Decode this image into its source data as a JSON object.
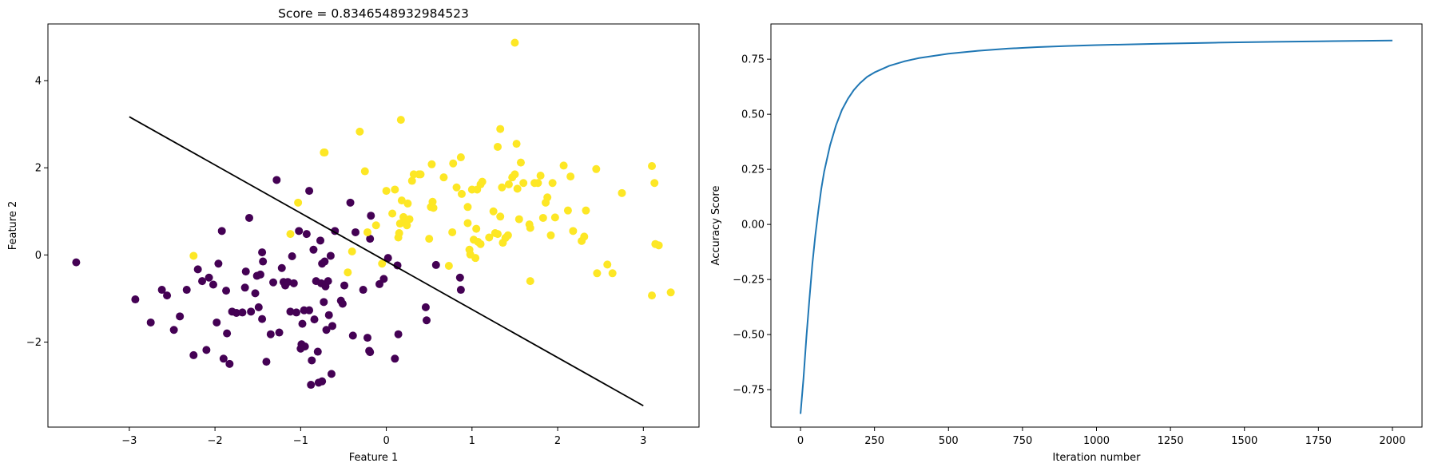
{
  "chart_data": [
    {
      "type": "scatter",
      "title": "Score = 0.8346548932984523",
      "xlabel": "Feature 1",
      "ylabel": "Feature 2",
      "xlim": [
        -3.95,
        3.65
      ],
      "ylim": [
        -3.95,
        5.3
      ],
      "xticks": [
        -3,
        -2,
        -1,
        0,
        1,
        2,
        3
      ],
      "yticks": [
        -2,
        0,
        2,
        4
      ],
      "xtick_labels": [
        "−3",
        "−2",
        "−1",
        "0",
        "1",
        "2",
        "3"
      ],
      "ytick_labels": [
        "−2",
        "0",
        "2",
        "4"
      ],
      "grid": false,
      "colors": {
        "class_0": "#440154",
        "class_1": "#fde725",
        "line": "#000000"
      },
      "decision_boundary": {
        "x": [
          -3,
          3
        ],
        "y": [
          3.17,
          -3.46
        ]
      },
      "series": [
        {
          "class": 0,
          "points": [
            [
              -3.62,
              -0.17
            ],
            [
              -2.93,
              -1.02
            ],
            [
              -2.75,
              -1.55
            ],
            [
              -2.62,
              -0.8
            ],
            [
              -2.56,
              -0.93
            ],
            [
              -2.48,
              -1.72
            ],
            [
              -2.41,
              -1.41
            ],
            [
              -2.33,
              -0.8
            ],
            [
              -2.25,
              -2.3
            ],
            [
              -2.2,
              -0.33
            ],
            [
              -2.15,
              -0.6
            ],
            [
              -2.1,
              -2.18
            ],
            [
              -2.07,
              -0.52
            ],
            [
              -2.02,
              -0.68
            ],
            [
              -1.98,
              -1.55
            ],
            [
              -1.96,
              -0.2
            ],
            [
              -1.92,
              0.55
            ],
            [
              -1.9,
              -2.38
            ],
            [
              -1.87,
              -0.82
            ],
            [
              -1.86,
              -1.8
            ],
            [
              -1.83,
              -2.5
            ],
            [
              -1.8,
              -1.3
            ],
            [
              -1.75,
              -1.33
            ],
            [
              -1.68,
              -1.32
            ],
            [
              -1.65,
              -0.75
            ],
            [
              -1.64,
              -0.38
            ],
            [
              -1.58,
              -1.3
            ],
            [
              -1.6,
              0.85
            ],
            [
              -1.53,
              -0.88
            ],
            [
              -1.51,
              -0.48
            ],
            [
              -1.49,
              -1.2
            ],
            [
              -1.47,
              -0.45
            ],
            [
              -1.45,
              -1.47
            ],
            [
              -1.45,
              0.06
            ],
            [
              -1.44,
              -0.15
            ],
            [
              -1.4,
              -2.45
            ],
            [
              -1.35,
              -1.82
            ],
            [
              -1.32,
              -0.63
            ],
            [
              -1.28,
              1.72
            ],
            [
              -1.25,
              -1.78
            ],
            [
              -1.22,
              -0.3
            ],
            [
              -1.2,
              -0.62
            ],
            [
              -1.18,
              -0.7
            ],
            [
              -1.15,
              -0.62
            ],
            [
              -1.12,
              -1.3
            ],
            [
              -1.1,
              -0.03
            ],
            [
              -1.08,
              -0.65
            ],
            [
              -1.05,
              -1.32
            ],
            [
              -1.02,
              0.55
            ],
            [
              -1.0,
              -2.15
            ],
            [
              -0.99,
              -2.05
            ],
            [
              -0.98,
              -1.58
            ],
            [
              -0.96,
              -1.27
            ],
            [
              -0.95,
              -2.1
            ],
            [
              -0.93,
              0.48
            ],
            [
              -0.9,
              1.47
            ],
            [
              -0.9,
              -1.27
            ],
            [
              -0.88,
              -2.98
            ],
            [
              -0.87,
              -2.42
            ],
            [
              -0.85,
              0.12
            ],
            [
              -0.84,
              -1.48
            ],
            [
              -0.82,
              -0.6
            ],
            [
              -0.8,
              -2.22
            ],
            [
              -0.79,
              -2.93
            ],
            [
              -0.77,
              0.33
            ],
            [
              -0.76,
              -0.65
            ],
            [
              -0.75,
              -2.9
            ],
            [
              -0.75,
              -0.2
            ],
            [
              -0.73,
              -1.08
            ],
            [
              -0.72,
              -0.15
            ],
            [
              -0.71,
              -0.72
            ],
            [
              -0.7,
              -1.72
            ],
            [
              -0.68,
              -0.6
            ],
            [
              -0.67,
              -1.38
            ],
            [
              -0.65,
              -0.02
            ],
            [
              -0.64,
              -2.73
            ],
            [
              -0.63,
              -1.63
            ],
            [
              -0.6,
              0.55
            ],
            [
              -0.53,
              -1.05
            ],
            [
              -0.51,
              -1.12
            ],
            [
              -0.49,
              -0.7
            ],
            [
              -0.42,
              1.2
            ],
            [
              -0.39,
              -1.85
            ],
            [
              -0.36,
              0.52
            ],
            [
              -0.27,
              -0.8
            ],
            [
              -0.22,
              -1.9
            ],
            [
              -0.2,
              -2.2
            ],
            [
              -0.19,
              -2.23
            ],
            [
              -0.19,
              0.37
            ],
            [
              -0.18,
              0.9
            ],
            [
              -0.08,
              -0.67
            ],
            [
              -0.03,
              -0.55
            ],
            [
              0.02,
              -0.07
            ],
            [
              0.1,
              -2.38
            ],
            [
              0.13,
              -0.24
            ],
            [
              0.14,
              -1.82
            ],
            [
              0.46,
              -1.2
            ],
            [
              0.47,
              -1.5
            ],
            [
              0.58,
              -0.23
            ],
            [
              0.86,
              -0.52
            ],
            [
              0.87,
              -0.8
            ]
          ]
        },
        {
          "class": 1,
          "points": [
            [
              -2.25,
              -0.02
            ],
            [
              -1.12,
              0.48
            ],
            [
              -1.03,
              1.2
            ],
            [
              -0.73,
              2.35
            ],
            [
              -0.45,
              -0.4
            ],
            [
              -0.31,
              2.83
            ],
            [
              -0.25,
              1.92
            ],
            [
              -0.22,
              0.52
            ],
            [
              -0.4,
              0.08
            ],
            [
              -0.12,
              0.68
            ],
            [
              -0.05,
              -0.2
            ],
            [
              0.0,
              1.47
            ],
            [
              0.07,
              0.95
            ],
            [
              0.1,
              1.5
            ],
            [
              0.14,
              0.4
            ],
            [
              0.15,
              0.5
            ],
            [
              0.16,
              0.72
            ],
            [
              0.18,
              1.25
            ],
            [
              0.2,
              0.87
            ],
            [
              0.21,
              0.78
            ],
            [
              0.24,
              0.68
            ],
            [
              0.25,
              1.18
            ],
            [
              0.27,
              0.82
            ],
            [
              0.3,
              1.7
            ],
            [
              0.32,
              1.85
            ],
            [
              0.38,
              1.85
            ],
            [
              0.4,
              1.85
            ],
            [
              0.5,
              0.37
            ],
            [
              0.52,
              1.1
            ],
            [
              0.53,
              2.08
            ],
            [
              0.54,
              1.22
            ],
            [
              0.55,
              1.08
            ],
            [
              0.67,
              1.78
            ],
            [
              0.73,
              -0.25
            ],
            [
              0.77,
              0.52
            ],
            [
              0.78,
              2.1
            ],
            [
              0.82,
              1.55
            ],
            [
              0.87,
              2.24
            ],
            [
              0.88,
              1.4
            ],
            [
              0.95,
              0.73
            ],
            [
              0.95,
              1.1
            ],
            [
              0.97,
              0.12
            ],
            [
              0.98,
              0.01
            ],
            [
              1.0,
              1.5
            ],
            [
              1.02,
              0.35
            ],
            [
              1.04,
              -0.07
            ],
            [
              1.05,
              0.6
            ],
            [
              1.06,
              1.5
            ],
            [
              1.07,
              0.3
            ],
            [
              1.1,
              0.25
            ],
            [
              1.1,
              1.62
            ],
            [
              1.12,
              1.68
            ],
            [
              1.2,
              0.4
            ],
            [
              1.25,
              1.0
            ],
            [
              1.27,
              0.5
            ],
            [
              1.3,
              2.48
            ],
            [
              1.3,
              0.48
            ],
            [
              1.33,
              0.88
            ],
            [
              1.35,
              1.55
            ],
            [
              1.36,
              0.28
            ],
            [
              1.39,
              0.39
            ],
            [
              1.42,
              0.45
            ],
            [
              1.43,
              1.62
            ],
            [
              1.47,
              1.78
            ],
            [
              1.5,
              1.85
            ],
            [
              1.52,
              2.55
            ],
            [
              1.53,
              1.52
            ],
            [
              1.55,
              0.82
            ],
            [
              1.57,
              2.12
            ],
            [
              1.6,
              1.65
            ],
            [
              1.67,
              0.7
            ],
            [
              1.68,
              0.62
            ],
            [
              1.73,
              1.65
            ],
            [
              1.77,
              1.65
            ],
            [
              1.8,
              1.82
            ],
            [
              1.83,
              0.85
            ],
            [
              1.86,
              1.2
            ],
            [
              1.88,
              1.32
            ],
            [
              1.92,
              0.45
            ],
            [
              1.94,
              1.65
            ],
            [
              1.97,
              0.86
            ],
            [
              2.07,
              2.05
            ],
            [
              2.12,
              1.02
            ],
            [
              2.15,
              1.8
            ],
            [
              2.18,
              0.55
            ],
            [
              2.28,
              0.32
            ],
            [
              2.31,
              0.42
            ],
            [
              2.33,
              1.02
            ],
            [
              2.45,
              1.97
            ],
            [
              2.46,
              -0.42
            ],
            [
              2.58,
              -0.22
            ],
            [
              2.64,
              -0.42
            ],
            [
              2.75,
              1.42
            ],
            [
              3.1,
              2.04
            ],
            [
              3.1,
              -0.93
            ],
            [
              3.13,
              1.65
            ],
            [
              3.14,
              0.25
            ],
            [
              3.18,
              0.22
            ],
            [
              3.32,
              -0.86
            ],
            [
              1.5,
              4.87
            ],
            [
              1.33,
              2.89
            ],
            [
              0.17,
              3.1
            ],
            [
              1.68,
              -0.6
            ],
            [
              -0.72,
              2.35
            ]
          ]
        }
      ]
    },
    {
      "type": "line",
      "title": "",
      "xlabel": "Iteration number",
      "ylabel": "Accuracy Score",
      "xlim": [
        -100,
        2100
      ],
      "ylim": [
        -0.92,
        0.91
      ],
      "xticks": [
        0,
        250,
        500,
        750,
        1000,
        1250,
        1500,
        1750,
        2000
      ],
      "yticks": [
        -0.75,
        -0.5,
        -0.25,
        0.0,
        0.25,
        0.5,
        0.75
      ],
      "xtick_labels": [
        "0",
        "250",
        "500",
        "750",
        "1000",
        "1250",
        "1500",
        "1750",
        "2000"
      ],
      "ytick_labels": [
        "−0.75",
        "−0.50",
        "−0.25",
        "0.00",
        "0.25",
        "0.50",
        "0.75"
      ],
      "grid": false,
      "colors": {
        "line": "#1f77b4"
      },
      "series": [
        {
          "x": [
            0,
            10,
            20,
            30,
            40,
            50,
            60,
            70,
            80,
            100,
            120,
            140,
            160,
            180,
            200,
            225,
            250,
            275,
            300,
            350,
            400,
            450,
            500,
            600,
            700,
            800,
            900,
            1000,
            1200,
            1400,
            1600,
            1800,
            2000
          ],
          "values": [
            -0.86,
            -0.7,
            -0.51,
            -0.34,
            -0.18,
            -0.05,
            0.06,
            0.16,
            0.24,
            0.36,
            0.45,
            0.52,
            0.57,
            0.61,
            0.64,
            0.67,
            0.69,
            0.705,
            0.72,
            0.74,
            0.755,
            0.765,
            0.775,
            0.788,
            0.798,
            0.805,
            0.81,
            0.814,
            0.82,
            0.825,
            0.829,
            0.832,
            0.835
          ]
        }
      ]
    }
  ]
}
